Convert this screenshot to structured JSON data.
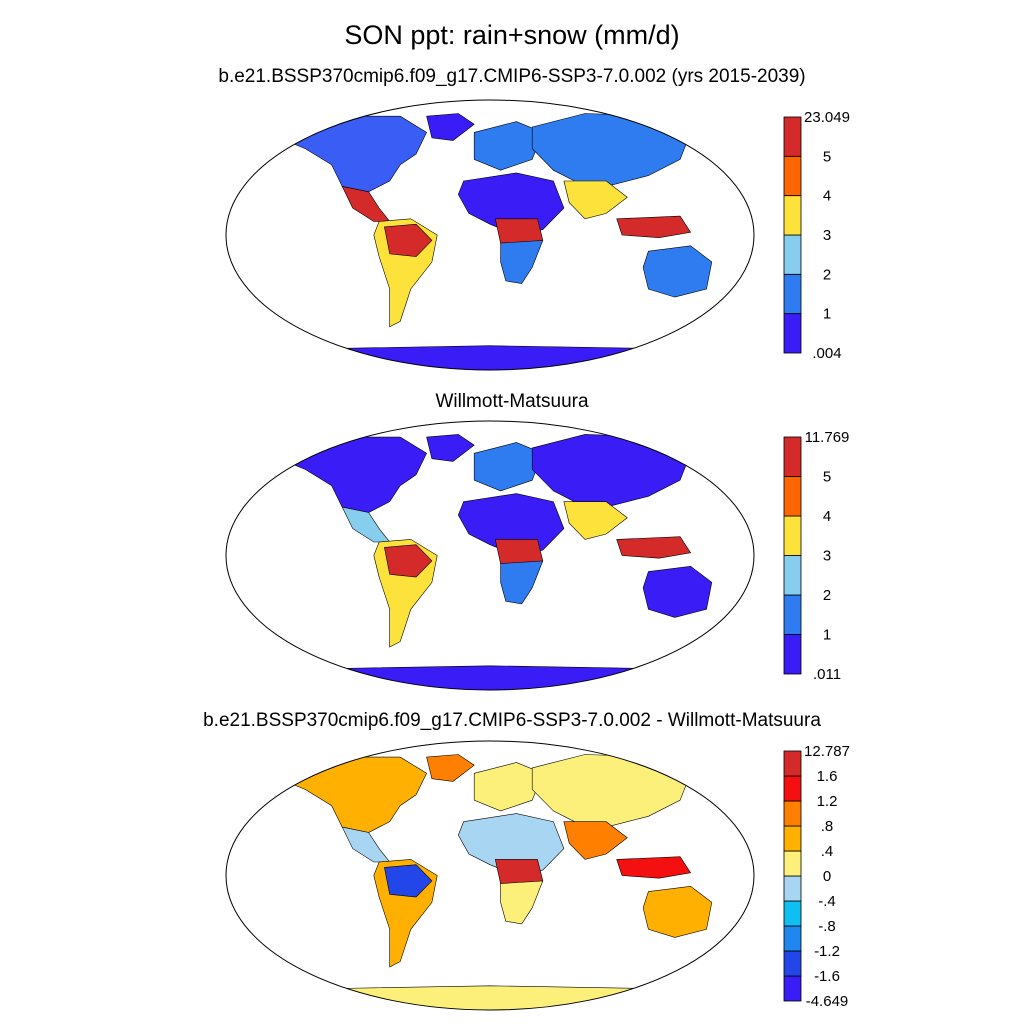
{
  "main_title": "SON ppt: rain+snow (mm/d)",
  "panels": [
    {
      "title": "b.e21.BSSP370cmip6.f09_g17.CMIP6-SSP3-7.0.002 (yrs 2015-2039)",
      "colorbar": {
        "colors": [
          "#3a1cf7",
          "#2e7cf0",
          "#86cdee",
          "#fde23c",
          "#ff6600",
          "#d42a2a"
        ],
        "labels": [
          ".004",
          "1",
          "2",
          "3",
          "4",
          "5",
          "23.049"
        ]
      }
    },
    {
      "title": "Willmott-Matsuura",
      "colorbar": {
        "colors": [
          "#3a1cf7",
          "#2e7cf0",
          "#86cdee",
          "#fde23c",
          "#ff6600",
          "#d42a2a"
        ],
        "labels": [
          ".011",
          "1",
          "2",
          "3",
          "4",
          "5",
          "11.769"
        ]
      }
    },
    {
      "title": "b.e21.BSSP370cmip6.f09_g17.CMIP6-SSP3-7.0.002 - Willmott-Matsuura",
      "colorbar": {
        "colors": [
          "#3a1cf7",
          "#2346e8",
          "#1e88ee",
          "#10bff2",
          "#a8d5f2",
          "#fdf07a",
          "#ffb000",
          "#ff8000",
          "#f41010",
          "#d42a2a"
        ],
        "labels": [
          "-4.649",
          "-1.6",
          "-1.2",
          "-.8",
          "-.4",
          "0",
          ".4",
          ".8",
          "1.2",
          "1.6",
          "12.787"
        ]
      }
    }
  ],
  "panel_fills": [
    {
      "north_america": "#3a5ef5",
      "greenland": "#3a1cf7",
      "central_america": "#d42a2a",
      "south_america": "#fde23c",
      "amazon": "#d42a2a",
      "africa": "#3a1cf7",
      "central_africa": "#d42a2a",
      "southern_africa": "#2e7cf0",
      "europe": "#2e7cf0",
      "asia": "#2e7cf0",
      "south_asia": "#fde23c",
      "indonesia": "#d42a2a",
      "australia": "#2e7cf0",
      "antarctica": "#3a1cf7"
    },
    {
      "north_america": "#3a1cf7",
      "greenland": "#3a1cf7",
      "central_america": "#86cdee",
      "south_america": "#fde23c",
      "amazon": "#d42a2a",
      "africa": "#3a1cf7",
      "central_africa": "#d42a2a",
      "southern_africa": "#2e7cf0",
      "europe": "#2e7cf0",
      "asia": "#3a1cf7",
      "south_asia": "#fde23c",
      "indonesia": "#d42a2a",
      "australia": "#3a1cf7",
      "antarctica": "#3a1cf7"
    },
    {
      "north_america": "#ffb000",
      "greenland": "#ff8000",
      "central_america": "#a8d5f2",
      "south_america": "#ffb000",
      "amazon": "#2346e8",
      "africa": "#a8d5f2",
      "central_africa": "#d42a2a",
      "southern_africa": "#fdf07a",
      "europe": "#fdf07a",
      "asia": "#fdf07a",
      "south_asia": "#ff8000",
      "indonesia": "#f41010",
      "australia": "#ffb000",
      "antarctica": "#fdf07a"
    }
  ]
}
